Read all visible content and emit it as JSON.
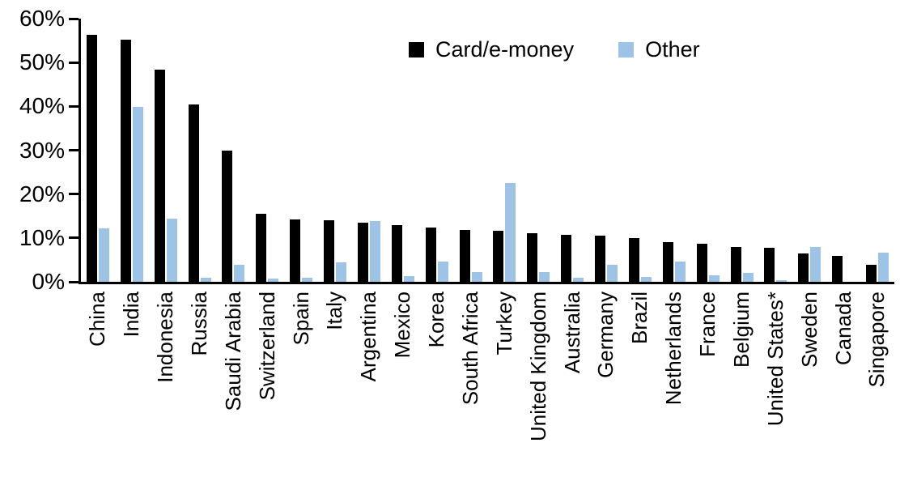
{
  "colors": {
    "card_emoney": "#000000",
    "other": "#9DC3E6",
    "axis": "#000000",
    "background": "#ffffff"
  },
  "chart_data": {
    "type": "bar",
    "title": "",
    "xlabel": "",
    "ylabel": "",
    "ylim": [
      0,
      60
    ],
    "yticks": [
      0,
      10,
      20,
      30,
      40,
      50,
      60
    ],
    "ytick_labels": [
      "0%",
      "10%",
      "20%",
      "30%",
      "40%",
      "50%",
      "60%"
    ],
    "grid": false,
    "legend_position": "top-center",
    "categories": [
      "China",
      "India",
      "Indonesia",
      "Russia",
      "Saudi Arabia",
      "Switzerland",
      "Spain",
      "Italy",
      "Argentina",
      "Mexico",
      "Korea",
      "South Africa",
      "Turkey",
      "United Kingdom",
      "Australia",
      "Germany",
      "Brazil",
      "Netherlands",
      "France",
      "Belgium",
      "United States*",
      "Sweden",
      "Canada",
      "Singapore"
    ],
    "series": [
      {
        "name": "Card/e-money",
        "color": "#000000",
        "values": [
          56.4,
          55.2,
          48.3,
          40.5,
          29.9,
          15.6,
          14.2,
          14.0,
          13.5,
          12.9,
          12.3,
          11.9,
          11.6,
          11.1,
          10.8,
          10.6,
          10.0,
          9.1,
          8.6,
          8.0,
          7.8,
          6.4,
          5.9,
          3.8
        ]
      },
      {
        "name": "Other",
        "color": "#9DC3E6",
        "values": [
          12.2,
          39.8,
          14.5,
          0.9,
          3.8,
          0.8,
          0.9,
          4.5,
          13.9,
          1.3,
          4.6,
          2.3,
          22.6,
          2.3,
          1.0,
          3.9,
          1.1,
          4.7,
          1.5,
          2.0,
          0.3,
          8.0,
          0.0,
          6.6
        ]
      }
    ]
  }
}
